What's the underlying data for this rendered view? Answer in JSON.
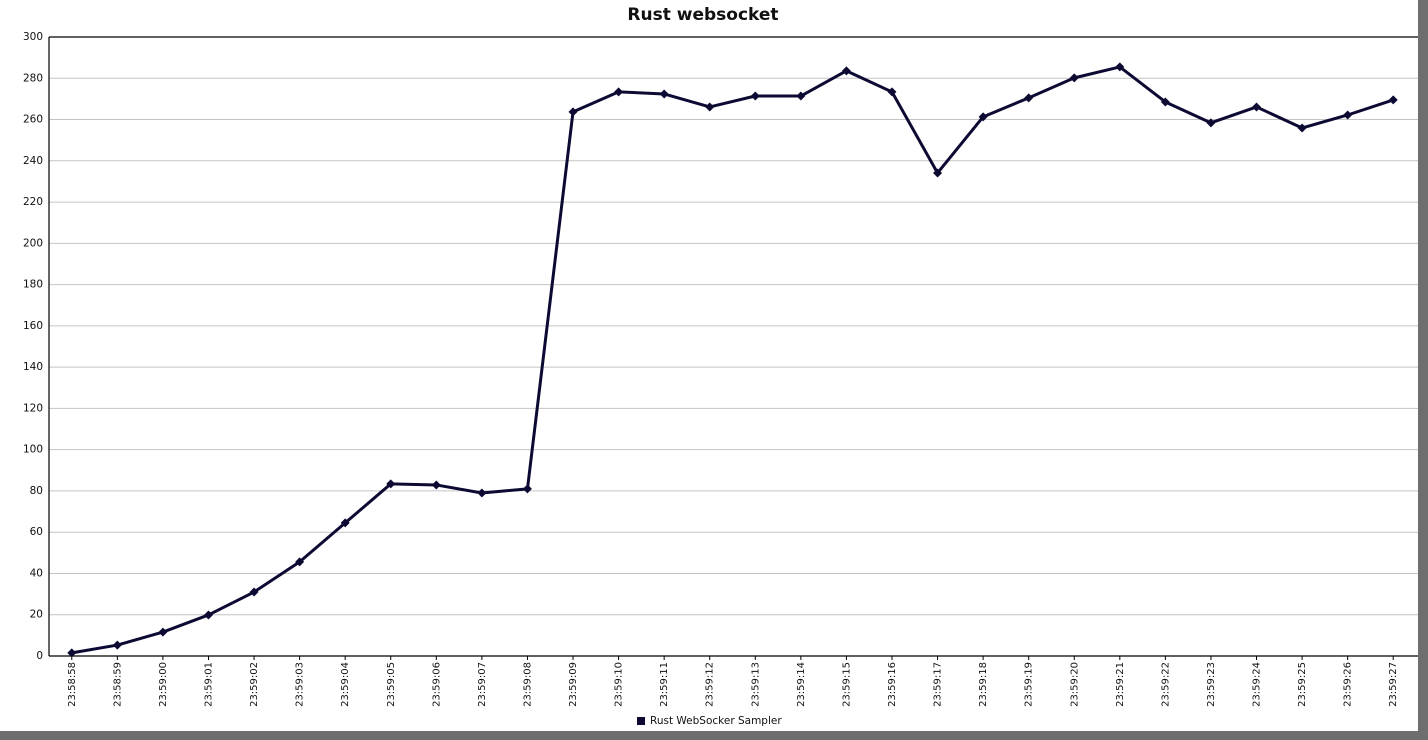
{
  "chart_data": {
    "type": "line",
    "title": "Rust websocket",
    "categories": [
      "23:58:58",
      "23:58:59",
      "23:59:00",
      "23:59:01",
      "23:59:02",
      "23:59:03",
      "23:59:04",
      "23:59:05",
      "23:59:06",
      "23:59:07",
      "23:59:08",
      "23:59:09",
      "23:59:10",
      "23:59:11",
      "23:59:12",
      "23:59:13",
      "23:59:14",
      "23:59:15",
      "23:59:16",
      "23:59:17",
      "23:59:18",
      "23:59:19",
      "23:59:20",
      "23:59:21",
      "23:59:22",
      "23:59:23",
      "23:59:24",
      "23:59:25",
      "23:59:26",
      "23:59:27"
    ],
    "series": [
      {
        "name": "Rust WebSocker Sampler",
        "color": "#0c0a33",
        "values": [
          1.5,
          5.3,
          11.6,
          19.9,
          31,
          45.6,
          64.5,
          83.4,
          82.9,
          79,
          81,
          263.7,
          273.4,
          272.4,
          266.1,
          271.4,
          271.4,
          283.6,
          273.4,
          234.1,
          261.3,
          270.5,
          280.2,
          285.5,
          268.5,
          258.4,
          266.1,
          255.9,
          262.2,
          269.5
        ]
      }
    ],
    "ylim": [
      0,
      300
    ],
    "yticks": [
      0,
      20,
      40,
      60,
      80,
      100,
      120,
      140,
      160,
      180,
      200,
      220,
      240,
      260,
      280,
      300
    ],
    "grid": true,
    "legend": "bottom"
  }
}
